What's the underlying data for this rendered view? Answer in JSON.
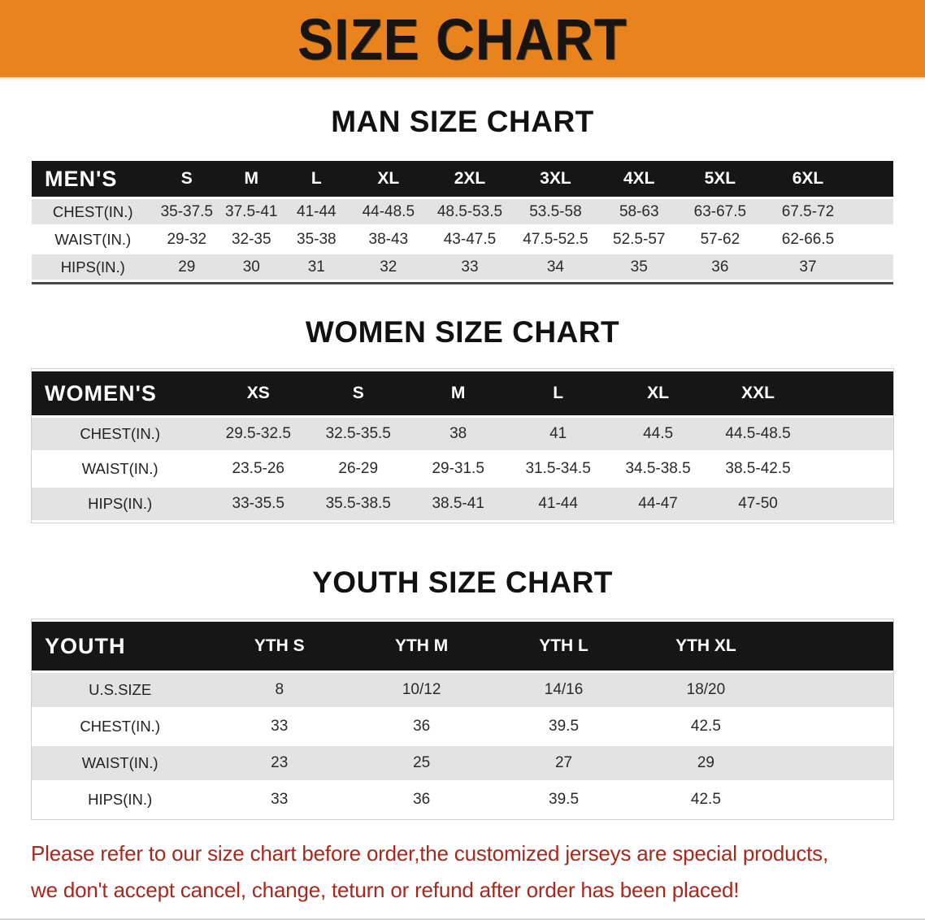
{
  "banner": {
    "title": "SIZE CHART",
    "bg_color": "#e8831d"
  },
  "colors": {
    "header_bar": "#161616",
    "row_stripe": "#e3e3e3",
    "footer_text": "#a8281e"
  },
  "sections": [
    {
      "heading": "MAN SIZE CHART",
      "table": {
        "header_label": "MEN'S",
        "sizes": [
          "S",
          "M",
          "L",
          "XL",
          "2XL",
          "3XL",
          "4XL",
          "5XL",
          "6XL"
        ],
        "rows": [
          {
            "label": "CHEST(IN.)",
            "values": [
              "35-37.5",
              "37.5-41",
              "41-44",
              "44-48.5",
              "48.5-53.5",
              "53.5-58",
              "58-63",
              "63-67.5",
              "67.5-72"
            ]
          },
          {
            "label": "WAIST(IN.)",
            "values": [
              "29-32",
              "32-35",
              "35-38",
              "38-43",
              "43-47.5",
              "47.5-52.5",
              "52.5-57",
              "57-62",
              "62-66.5"
            ]
          },
          {
            "label": "HIPS(IN.)",
            "values": [
              "29",
              "30",
              "31",
              "32",
              "33",
              "34",
              "35",
              "36",
              "37"
            ]
          }
        ]
      }
    },
    {
      "heading": "WOMEN SIZE CHART",
      "table": {
        "header_label": "WOMEN'S",
        "sizes": [
          "XS",
          "S",
          "M",
          "L",
          "XL",
          "XXL"
        ],
        "rows": [
          {
            "label": "CHEST(IN.)",
            "values": [
              "29.5-32.5",
              "32.5-35.5",
              "38",
              "41",
              "44.5",
              "44.5-48.5"
            ]
          },
          {
            "label": "WAIST(IN.)",
            "values": [
              "23.5-26",
              "26-29",
              "29-31.5",
              "31.5-34.5",
              "34.5-38.5",
              "38.5-42.5"
            ]
          },
          {
            "label": "HIPS(IN.)",
            "values": [
              "33-35.5",
              "35.5-38.5",
              "38.5-41",
              "41-44",
              "44-47",
              "47-50"
            ]
          }
        ]
      }
    },
    {
      "heading": "YOUTH SIZE CHART",
      "table": {
        "header_label": "YOUTH",
        "sizes": [
          "YTH S",
          "YTH M",
          "YTH L",
          "YTH XL"
        ],
        "rows": [
          {
            "label": "U.S.SIZE",
            "values": [
              "8",
              "10/12",
              "14/16",
              "18/20"
            ]
          },
          {
            "label": "CHEST(IN.)",
            "values": [
              "33",
              "36",
              "39.5",
              "42.5"
            ]
          },
          {
            "label": "WAIST(IN.)",
            "values": [
              "23",
              "25",
              "27",
              "29"
            ]
          },
          {
            "label": "HIPS(IN.)",
            "values": [
              "33",
              "36",
              "39.5",
              "42.5"
            ]
          }
        ]
      }
    }
  ],
  "footer": {
    "line1": "Please refer to our size chart before order,the customized jerseys are special products,",
    "line2": "we don't accept cancel, change, teturn or refund after order has been placed!"
  }
}
